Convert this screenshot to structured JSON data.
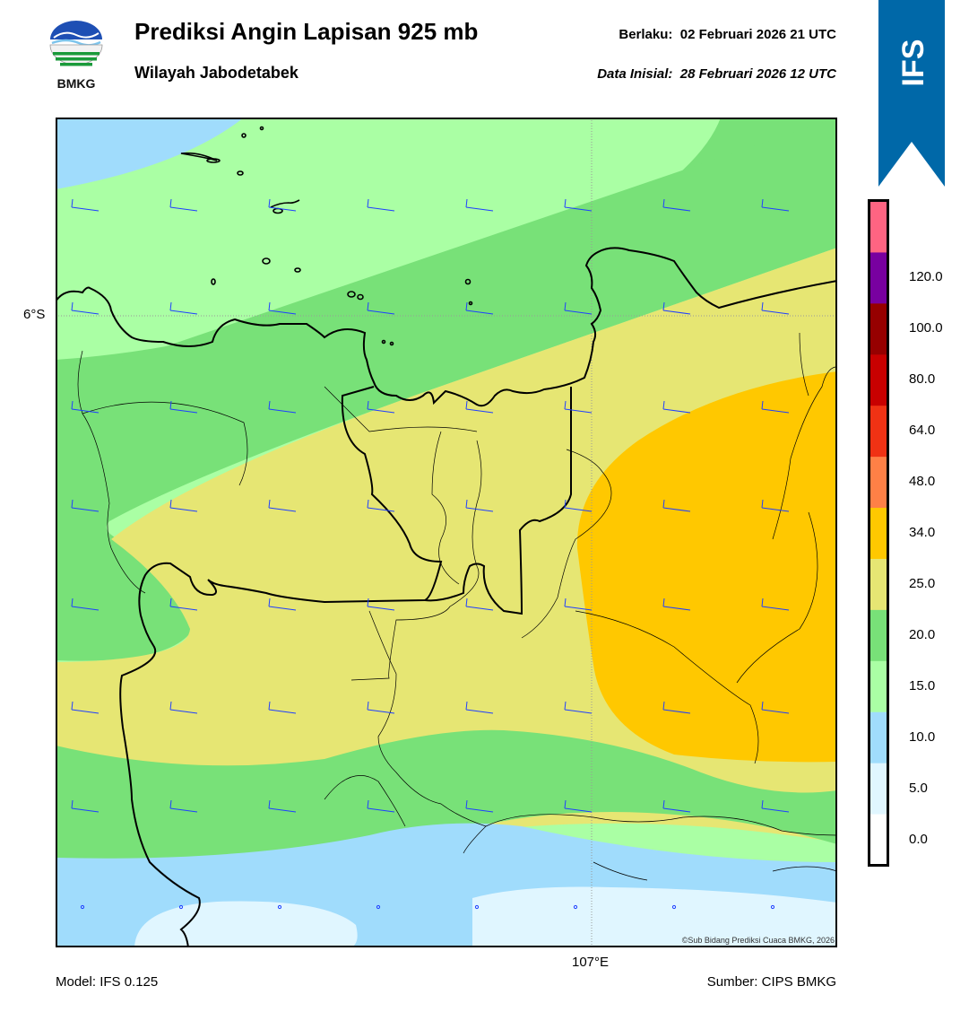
{
  "header": {
    "title": "Prediksi Angin Lapisan 925 mb",
    "subtitle": "Wilayah Jabodetabek",
    "valid_label": "Berlaku:",
    "valid_value": "02 Februari 2026 21 UTC",
    "init_label": "Data Inisial:",
    "init_value": "28 Februari 2026 12 UTC"
  },
  "logo": {
    "text": "BMKG",
    "icon": "bmkg-logo"
  },
  "ribbon": {
    "text": "IFS",
    "color": "#0068a8"
  },
  "map": {
    "lat_label": "6°S",
    "lon_label": "107°E",
    "copyright": "©Sub Bidang Prediksi Cuaca BMKG, 2026",
    "background_color": "#ffffff",
    "barb_color": "#1f3fff"
  },
  "footer": {
    "model": "Model: IFS 0.125",
    "source": "Sumber: CIPS BMKG"
  },
  "colorbar": {
    "ticks": [
      "0.0",
      "5.0",
      "10.0",
      "15.0",
      "20.0",
      "25.0",
      "34.0",
      "48.0",
      "64.0",
      "80.0",
      "100.0",
      "120.0"
    ],
    "colors": [
      "#ffffff",
      "#e0f6ff",
      "#a0dcfc",
      "#aaffa4",
      "#78e178",
      "#e6e673",
      "#ffc800",
      "#ff8046",
      "#f03214",
      "#c80000",
      "#960000",
      "#7800a0",
      "#ff6482"
    ]
  }
}
